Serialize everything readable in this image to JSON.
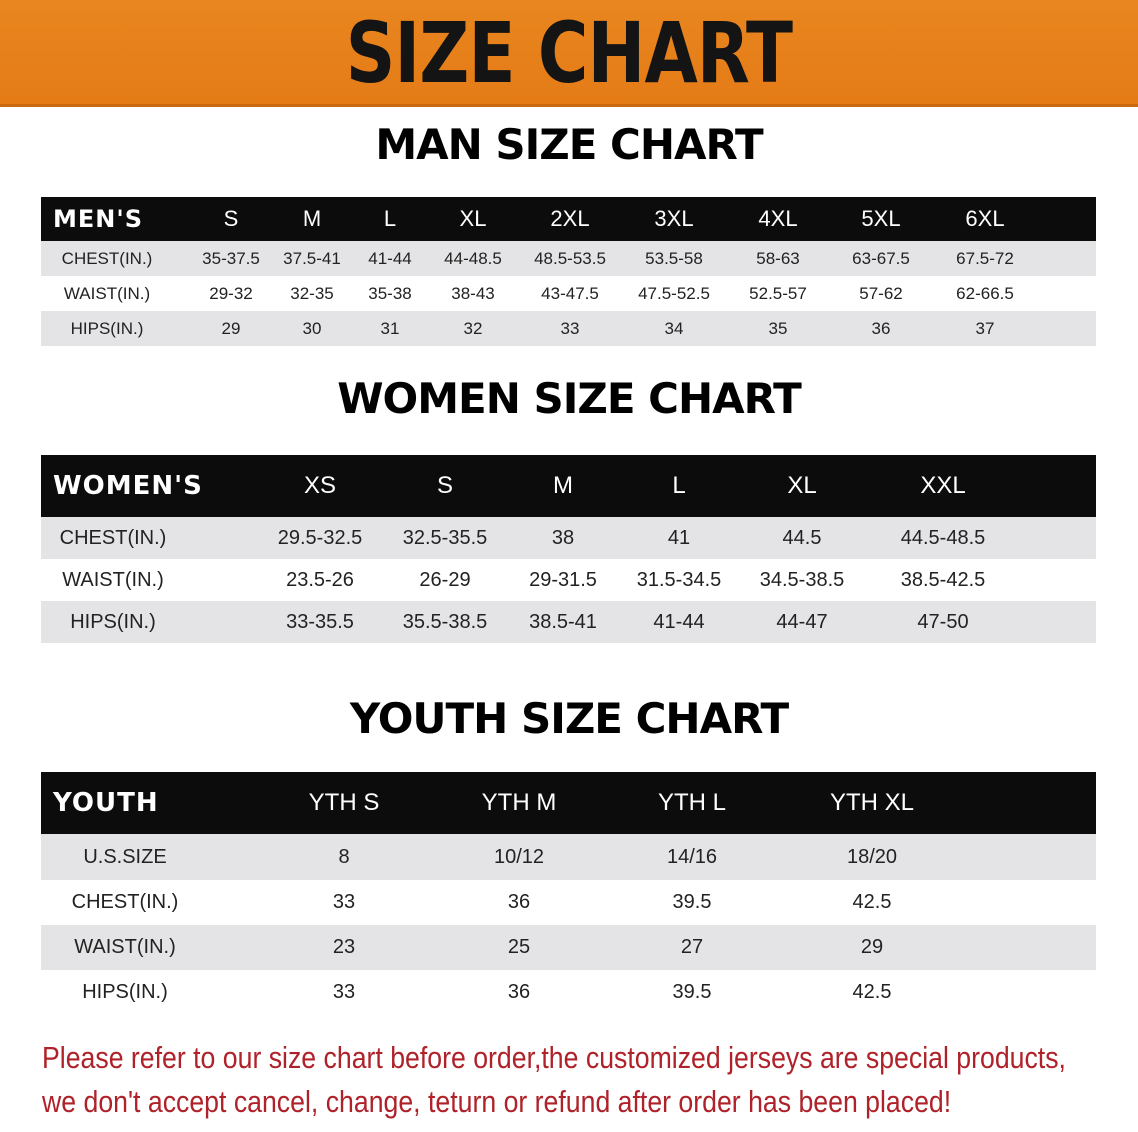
{
  "banner": {
    "title": "SIZE CHART",
    "color": "#e8821b"
  },
  "men": {
    "title": "MAN SIZE CHART",
    "header": [
      "MEN'S",
      "S",
      "M",
      "L",
      "XL",
      "2XL",
      "3XL",
      "4XL",
      "5XL",
      "6XL"
    ],
    "rows": [
      [
        "CHEST(IN.)",
        "35-37.5",
        "37.5-41",
        "41-44",
        "44-48.5",
        "48.5-53.5",
        "53.5-58",
        "58-63",
        "63-67.5",
        "67.5-72"
      ],
      [
        "WAIST(IN.)",
        "29-32",
        "32-35",
        "35-38",
        "38-43",
        "43-47.5",
        "47.5-52.5",
        "52.5-57",
        "57-62",
        "62-66.5"
      ],
      [
        "HIPS(IN.)",
        "29",
        "30",
        "31",
        "32",
        "33",
        "34",
        "35",
        "36",
        "37"
      ]
    ]
  },
  "women": {
    "title": "WOMEN SIZE CHART",
    "header": [
      "WOMEN'S",
      "XS",
      "S",
      "M",
      "L",
      "XL",
      "XXL"
    ],
    "rows": [
      [
        "CHEST(IN.)",
        "29.5-32.5",
        "32.5-35.5",
        "38",
        "41",
        "44.5",
        "44.5-48.5"
      ],
      [
        "WAIST(IN.)",
        "23.5-26",
        "26-29",
        "29-31.5",
        "31.5-34.5",
        "34.5-38.5",
        "38.5-42.5"
      ],
      [
        "HIPS(IN.)",
        "33-35.5",
        "35.5-38.5",
        "38.5-41",
        "41-44",
        "44-47",
        "47-50"
      ]
    ]
  },
  "youth": {
    "title": "YOUTH SIZE CHART",
    "header": [
      "YOUTH",
      "YTH S",
      "YTH M",
      "YTH L",
      "YTH XL"
    ],
    "rows": [
      [
        "U.S.SIZE",
        "8",
        "10/12",
        "14/16",
        "18/20"
      ],
      [
        "CHEST(IN.)",
        "33",
        "36",
        "39.5",
        "42.5"
      ],
      [
        "WAIST(IN.)",
        "23",
        "25",
        "27",
        "29"
      ],
      [
        "HIPS(IN.)",
        "33",
        "36",
        "39.5",
        "42.5"
      ]
    ]
  },
  "note": {
    "line1": "Please refer to our size chart before order,the customized jerseys are special products,",
    "line2": "we don't accept cancel, change, teturn or refund after order has been placed!",
    "color": "#b0222a"
  }
}
